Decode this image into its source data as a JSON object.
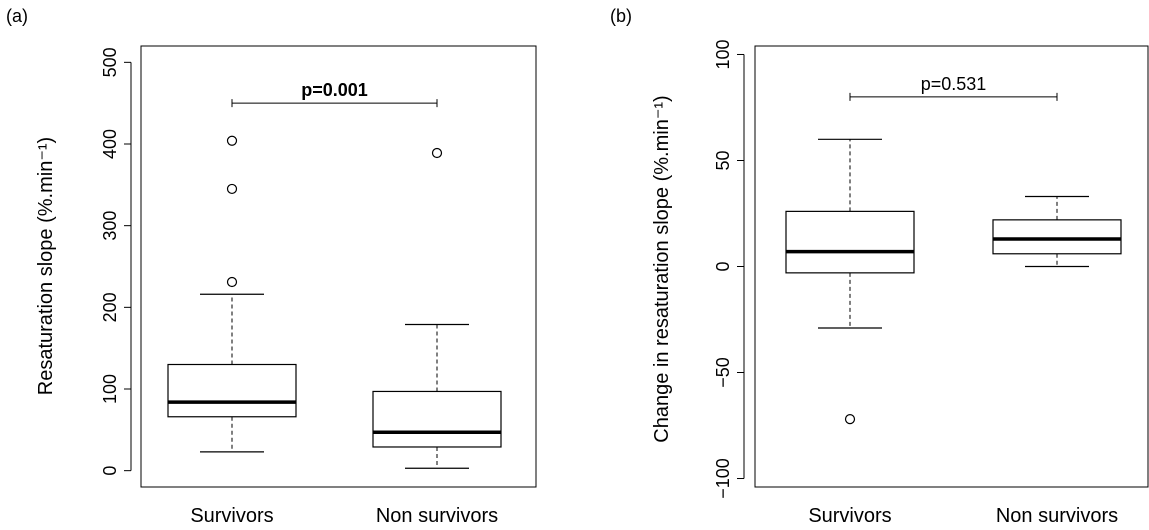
{
  "chart_data": [
    {
      "type": "box",
      "panel_label": "(a)",
      "ylabel": "Resaturation slope (%.min⁻¹)",
      "ylim": [
        -20,
        520
      ],
      "yticks": [
        0,
        100,
        200,
        300,
        400,
        500
      ],
      "ytick_labels": [
        "0",
        "100",
        "200",
        "300",
        "400",
        "500"
      ],
      "categories": [
        "Survivors",
        "Non survivors"
      ],
      "boxes": [
        {
          "whisker_low": 23,
          "q1": 66,
          "median": 84,
          "q3": 130,
          "whisker_high": 216,
          "outliers": [
            231,
            345,
            404
          ]
        },
        {
          "whisker_low": 3,
          "q1": 29,
          "median": 47,
          "q3": 97,
          "whisker_high": 179,
          "outliers": [
            389
          ]
        }
      ],
      "comparison": {
        "text": "p=0.001",
        "bold": true,
        "y": 450
      }
    },
    {
      "type": "box",
      "panel_label": "(b)",
      "ylabel": "Change in resaturation slope (%.min⁻¹)",
      "ylim": [
        -104,
        104
      ],
      "yticks": [
        -100,
        -50,
        0,
        50,
        100
      ],
      "ytick_labels": [
        "−100",
        "−50",
        "0",
        "50",
        "100"
      ],
      "categories": [
        "Survivors",
        "Non survivors"
      ],
      "boxes": [
        {
          "whisker_low": -29,
          "q1": -3,
          "median": 7,
          "q3": 26,
          "whisker_high": 60,
          "outliers": [
            -72
          ]
        },
        {
          "whisker_low": 0,
          "q1": 6,
          "median": 13,
          "q3": 22,
          "whisker_high": 33,
          "outliers": []
        }
      ],
      "comparison": {
        "text": "p=0.531",
        "bold": false,
        "y": 80
      }
    }
  ]
}
